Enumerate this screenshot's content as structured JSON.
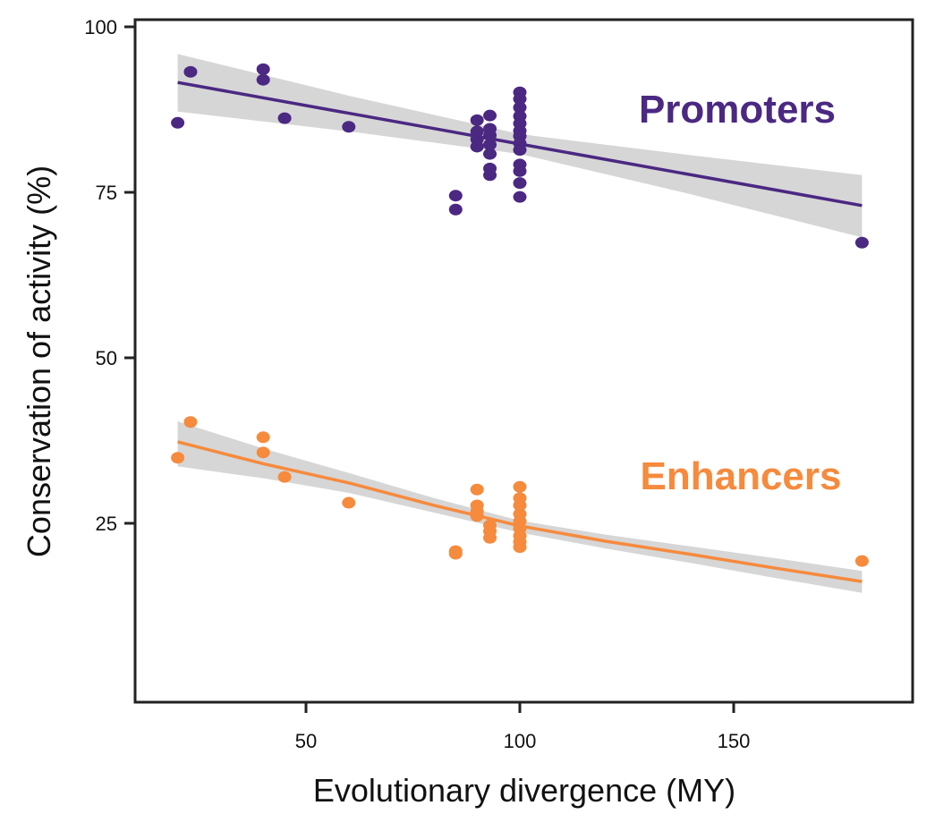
{
  "chart_data": {
    "type": "scatter",
    "xlabel": "Evolutionary divergence (MY)",
    "ylabel": "Conservation of activity (%)",
    "xlim": [
      9.8,
      191.8
    ],
    "ylim": [
      -2,
      101
    ],
    "xticks": [
      50,
      100,
      150
    ],
    "yticks": [
      25,
      50,
      75,
      100
    ],
    "grid": false,
    "series": [
      {
        "name": "Promoters",
        "color": "#4b2882",
        "points": [
          [
            20,
            85.5
          ],
          [
            23,
            93.2
          ],
          [
            40,
            93.6
          ],
          [
            40,
            92.0
          ],
          [
            45,
            86.2
          ],
          [
            60,
            84.9
          ],
          [
            85,
            74.5
          ],
          [
            85,
            72.4
          ],
          [
            90,
            85.9
          ],
          [
            90,
            84.2
          ],
          [
            90,
            83.0
          ],
          [
            90,
            81.9
          ],
          [
            93,
            86.6
          ],
          [
            93,
            84.6
          ],
          [
            93,
            83.6
          ],
          [
            93,
            82.2
          ],
          [
            93,
            80.8
          ],
          [
            93,
            78.6
          ],
          [
            93,
            77.6
          ],
          [
            100,
            90.1
          ],
          [
            100,
            89.1
          ],
          [
            100,
            87.8
          ],
          [
            100,
            86.5
          ],
          [
            100,
            85.4
          ],
          [
            100,
            84.3
          ],
          [
            100,
            83.5
          ],
          [
            100,
            82.4
          ],
          [
            100,
            81.4
          ],
          [
            100,
            79.2
          ],
          [
            100,
            78.2
          ],
          [
            100,
            76.4
          ],
          [
            100,
            74.3
          ],
          [
            180,
            67.4
          ]
        ],
        "fit": [
          [
            20,
            91.6
          ],
          [
            60,
            86.95
          ],
          [
            100,
            82.3
          ],
          [
            140,
            77.65
          ],
          [
            180,
            73.0
          ]
        ],
        "band_upper": [
          [
            20,
            95.9
          ],
          [
            60,
            89.6
          ],
          [
            100,
            83.8
          ],
          [
            140,
            80.6
          ],
          [
            180,
            77.6
          ]
        ],
        "band_lower": [
          [
            20,
            87.2
          ],
          [
            60,
            84.2
          ],
          [
            100,
            80.8
          ],
          [
            140,
            74.7
          ],
          [
            180,
            68.2
          ]
        ]
      },
      {
        "name": "Enhancers",
        "color": "#f68a3d",
        "points": [
          [
            20,
            34.9
          ],
          [
            23,
            40.3
          ],
          [
            40,
            38.0
          ],
          [
            40,
            35.7
          ],
          [
            45,
            32.0
          ],
          [
            60,
            28.1
          ],
          [
            85,
            20.8
          ],
          [
            85,
            20.4
          ],
          [
            90,
            30.1
          ],
          [
            90,
            27.7
          ],
          [
            90,
            26.8
          ],
          [
            90,
            26.1
          ],
          [
            93,
            24.7
          ],
          [
            93,
            23.8
          ],
          [
            93,
            22.8
          ],
          [
            100,
            30.5
          ],
          [
            100,
            28.8
          ],
          [
            100,
            27.7
          ],
          [
            100,
            26.4
          ],
          [
            100,
            25.3
          ],
          [
            100,
            24.2
          ],
          [
            100,
            23.1
          ],
          [
            100,
            22.2
          ],
          [
            100,
            21.4
          ],
          [
            180,
            19.3
          ]
        ],
        "fit": [
          [
            20,
            37.3
          ],
          [
            40,
            34.0
          ],
          [
            60,
            31.1
          ],
          [
            80,
            27.7
          ],
          [
            100,
            24.6
          ],
          [
            120,
            22.3
          ],
          [
            140,
            20.3
          ],
          [
            160,
            18.2
          ],
          [
            180,
            16.2
          ]
        ],
        "band_upper": [
          [
            20,
            40.4
          ],
          [
            40,
            36.3
          ],
          [
            60,
            32.6
          ],
          [
            80,
            28.8
          ],
          [
            100,
            25.4
          ],
          [
            120,
            23.3
          ],
          [
            140,
            21.5
          ],
          [
            160,
            19.7
          ],
          [
            180,
            17.8
          ]
        ],
        "band_lower": [
          [
            20,
            33.6
          ],
          [
            40,
            31.8
          ],
          [
            60,
            29.6
          ],
          [
            80,
            26.6
          ],
          [
            100,
            23.6
          ],
          [
            120,
            21.2
          ],
          [
            140,
            19.0
          ],
          [
            160,
            16.7
          ],
          [
            180,
            14.5
          ]
        ]
      }
    ],
    "band_color": "#d6d6d6"
  }
}
